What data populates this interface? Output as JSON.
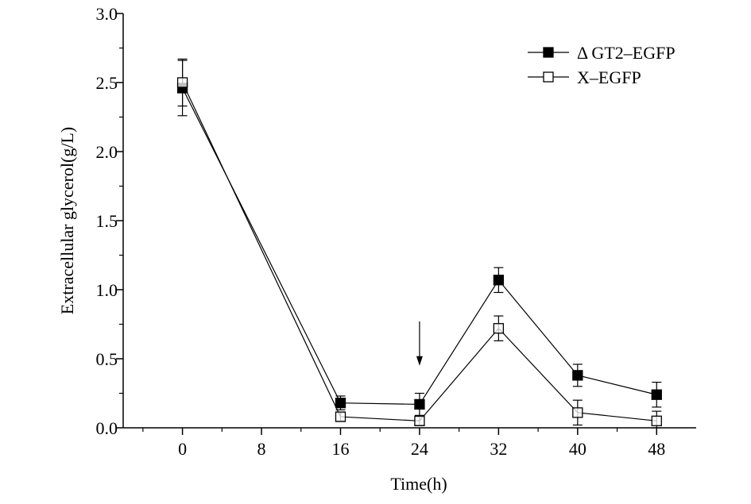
{
  "chart_data": {
    "type": "line",
    "title": "",
    "xlabel": "Time(h)",
    "ylabel": "Extracellular glycerol(g/L)",
    "xlim": [
      -6,
      52
    ],
    "ylim": [
      0,
      3.0
    ],
    "xticks": [
      0,
      8,
      16,
      24,
      32,
      40,
      48
    ],
    "xtick_labels": [
      "0",
      "8",
      "16",
      "24",
      "32",
      "40",
      "48"
    ],
    "yticks": [
      0,
      0.5,
      1.0,
      1.5,
      2.0,
      2.5,
      3.0
    ],
    "ytick_labels": [
      "0.0",
      "0.5",
      "1.0",
      "1.5",
      "2.0",
      "2.5",
      "3.0"
    ],
    "grid": false,
    "legend_position": "top-right",
    "annotations": [
      {
        "type": "arrow",
        "x": 24,
        "y_from": 0.77,
        "y_to": 0.45,
        "direction": "down"
      }
    ],
    "series": [
      {
        "name": "Δ GT2–EGFP",
        "marker": "filled-square",
        "x": [
          0,
          16,
          24,
          32,
          40,
          48
        ],
        "values": [
          2.46,
          0.18,
          0.17,
          1.07,
          0.38,
          0.24
        ],
        "errors": [
          0.2,
          0.05,
          0.08,
          0.09,
          0.08,
          0.09
        ]
      },
      {
        "name": "X–EGFP",
        "marker": "open-square",
        "x": [
          0,
          16,
          24,
          32,
          40,
          48
        ],
        "values": [
          2.5,
          0.08,
          0.05,
          0.72,
          0.11,
          0.05
        ],
        "errors": [
          0.17,
          0.03,
          0.03,
          0.09,
          0.09,
          0.07
        ]
      }
    ]
  }
}
